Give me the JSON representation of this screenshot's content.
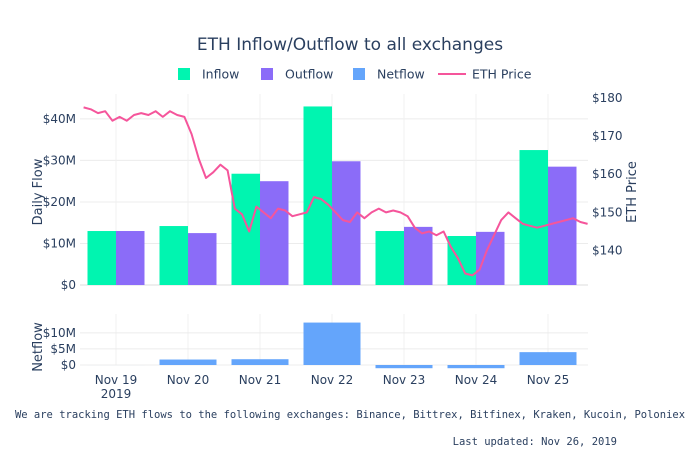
{
  "chart_data": {
    "type": "bar",
    "title": "ETH Inflow/Outflow to all exchanges",
    "categories": [
      "Nov 19\n2019",
      "Nov 20",
      "Nov 21",
      "Nov 22",
      "Nov 23",
      "Nov 24",
      "Nov 25"
    ],
    "series": [
      {
        "name": "Inflow",
        "color": "#00f5b0",
        "values": [
          13.0,
          14.2,
          26.8,
          43.0,
          13.0,
          11.8,
          32.5
        ]
      },
      {
        "name": "Outflow",
        "color": "#8b6cf8",
        "values": [
          13.0,
          12.5,
          25.0,
          29.8,
          14.0,
          12.8,
          28.5
        ]
      }
    ],
    "netflow": {
      "name": "Netflow",
      "color": "#64a5fb",
      "values": [
        0.0,
        1.7,
        1.8,
        13.2,
        -1.0,
        -1.0,
        4.0
      ]
    },
    "price_line": {
      "name": "ETH Price",
      "color": "#f5559b",
      "day_offsets": [
        -0.45,
        -0.35,
        -0.25,
        -0.15,
        -0.05,
        0.05,
        0.15,
        0.25,
        0.35,
        0.45,
        0.55,
        0.65,
        0.75,
        0.85,
        0.95,
        1.05,
        1.15,
        1.25,
        1.35,
        1.45,
        1.55,
        1.65,
        1.75,
        1.85,
        1.95,
        2.05,
        2.15,
        2.25,
        2.35,
        2.45,
        2.55,
        2.65,
        2.75,
        2.85,
        2.95,
        3.05,
        3.15,
        3.25,
        3.35,
        3.45,
        3.55,
        3.65,
        3.75,
        3.85,
        3.95,
        4.05,
        4.15,
        4.25,
        4.35,
        4.45,
        4.55,
        4.65,
        4.75,
        4.85,
        4.95,
        5.05,
        5.15,
        5.25,
        5.35,
        5.45,
        5.55,
        5.65,
        5.75,
        5.85,
        5.95,
        6.05,
        6.15,
        6.25,
        6.35,
        6.45,
        6.55
      ],
      "values": [
        177.5,
        177.0,
        176.0,
        176.5,
        174.0,
        175.0,
        174.0,
        175.5,
        176.0,
        175.5,
        176.5,
        175.0,
        176.5,
        175.5,
        175.0,
        170.5,
        164.0,
        159.0,
        160.5,
        162.5,
        161.0,
        151.0,
        149.5,
        145.0,
        151.5,
        150.0,
        148.5,
        151.0,
        150.5,
        149.0,
        149.5,
        150.0,
        154.0,
        153.5,
        152.0,
        150.0,
        148.0,
        147.5,
        150.0,
        148.5,
        150.0,
        151.0,
        150.0,
        150.5,
        150.0,
        149.0,
        146.0,
        144.5,
        145.0,
        144.0,
        145.0,
        141.0,
        138.0,
        134.0,
        133.5,
        135.0,
        140.0,
        144.0,
        148.0,
        150.0,
        148.5,
        147.0,
        146.5,
        146.0,
        146.5,
        147.0,
        147.5,
        148.0,
        148.5,
        147.5,
        147.0
      ]
    },
    "legend": [
      "Inflow",
      "Outflow",
      "Netflow",
      "ETH Price"
    ],
    "ylabel": "Daily Flow",
    "y2label": "ETH Price",
    "netflow_label": "Netflow",
    "ylim": [
      0,
      46
    ],
    "y_ticks": [
      "$0",
      "$10M",
      "$20M",
      "$30M",
      "$40M"
    ],
    "y2lim": [
      131,
      181
    ],
    "y2_ticks": [
      "$140",
      "$150",
      "$160",
      "$170",
      "$180"
    ],
    "netflow_ylim": [
      -1.5,
      14
    ],
    "netflow_ticks": [
      "$0",
      "$5M",
      "$10M"
    ],
    "grid": true,
    "legend_position": "top"
  },
  "footer": {
    "note": "We are tracking ETH flows to the following exchanges: Binance, Bittrex, Bitfinex, Kraken, Kucoin, Poloniex",
    "updated": "Last updated: Nov 26, 2019"
  }
}
